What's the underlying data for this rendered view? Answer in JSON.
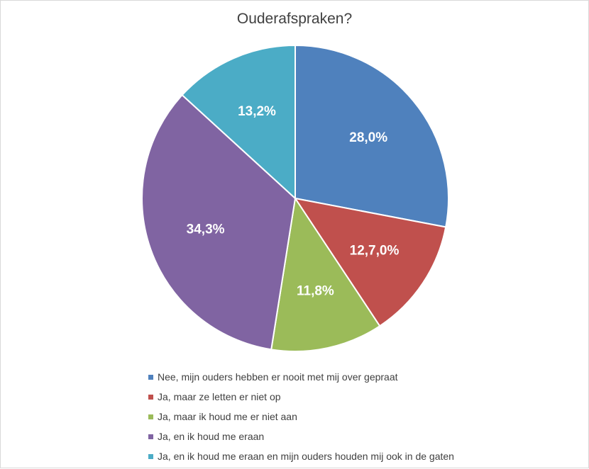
{
  "chart_data": {
    "type": "pie",
    "title": "Ouderafspraken?",
    "slices": [
      {
        "label": "Nee, mijn ouders hebben er nooit met mij over gepraat",
        "value": 28.0,
        "display": "28,0%",
        "color": "#4f81bd"
      },
      {
        "label": "Ja, maar ze letten er niet op",
        "value": 12.7,
        "display": "12,7,0%",
        "color": "#c0504d"
      },
      {
        "label": "Ja, maar ik houd me er niet aan",
        "value": 11.8,
        "display": "11,8%",
        "color": "#9bbb59"
      },
      {
        "label": "Ja, en ik houd me eraan",
        "value": 34.3,
        "display": "34,3%",
        "color": "#8064a2"
      },
      {
        "label": "Ja, en ik houd me eraan en mijn ouders houden mij ook in de gaten",
        "value": 13.2,
        "display": "13,2%",
        "color": "#4bacc6"
      }
    ],
    "start_angle_deg": 0,
    "direction": "clockwise",
    "legend_position": "bottom"
  }
}
